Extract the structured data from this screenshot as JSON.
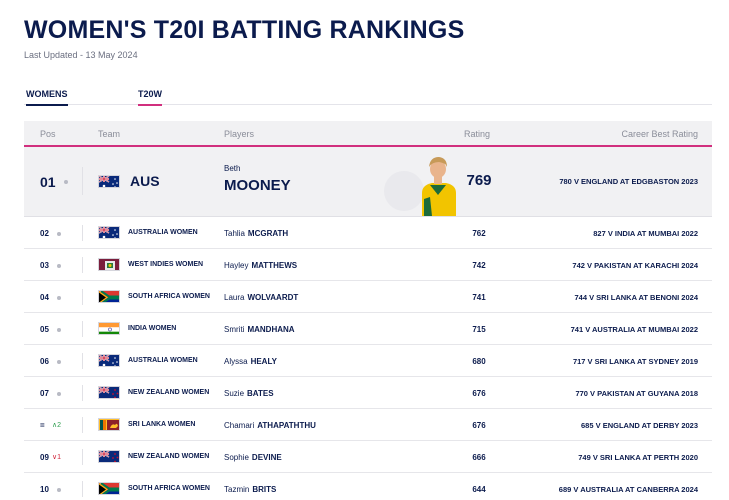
{
  "page": {
    "title": "WOMEN'S T20I BATTING RANKINGS",
    "updated": "Last Updated - 13 May 2024"
  },
  "tabs": [
    {
      "label": "WOMENS",
      "active": true
    },
    {
      "label": "T20W",
      "active": true
    }
  ],
  "headers": {
    "pos": "Pos",
    "team": "Team",
    "players": "Players",
    "rating": "Rating",
    "career_best": "Career Best Rating"
  },
  "top": {
    "pos": "01",
    "team": "AUS",
    "flag": "australia",
    "first": "Beth",
    "last": "MOONEY",
    "rating": "769",
    "best": "780 V ENGLAND AT EDGBASTON 2023"
  },
  "rows": [
    {
      "pos": "02",
      "move": "",
      "team": "AUSTRALIA WOMEN",
      "flag": "australia",
      "first": "Tahlia",
      "last": "MCGRATH",
      "rating": "762",
      "best": "827 V INDIA AT MUMBAI 2022"
    },
    {
      "pos": "03",
      "move": "",
      "team": "WEST INDIES WOMEN",
      "flag": "west-indies",
      "first": "Hayley",
      "last": "MATTHEWS",
      "rating": "742",
      "best": "742 V PAKISTAN AT KARACHI 2024"
    },
    {
      "pos": "04",
      "move": "",
      "team": "SOUTH AFRICA WOMEN",
      "flag": "south-africa",
      "first": "Laura",
      "last": "WOLVAARDT",
      "rating": "741",
      "best": "744 V SRI LANKA AT BENONI 2024"
    },
    {
      "pos": "05",
      "move": "",
      "team": "INDIA WOMEN",
      "flag": "india",
      "first": "Smriti",
      "last": "MANDHANA",
      "rating": "715",
      "best": "741 V AUSTRALIA AT MUMBAI 2022"
    },
    {
      "pos": "06",
      "move": "",
      "team": "AUSTRALIA WOMEN",
      "flag": "australia",
      "first": "Alyssa",
      "last": "HEALY",
      "rating": "680",
      "best": "717 V SRI LANKA AT SYDNEY 2019"
    },
    {
      "pos": "07",
      "move": "",
      "team": "NEW ZEALAND WOMEN",
      "flag": "new-zealand",
      "first": "Suzie",
      "last": "BATES",
      "rating": "676",
      "best": "770 V PAKISTAN AT GUYANA 2018"
    },
    {
      "pos": "=",
      "move": "^2",
      "move_dir": "up",
      "team": "SRI LANKA WOMEN",
      "flag": "sri-lanka",
      "first": "Chamari",
      "last": "ATHAPATHTHU",
      "rating": "676",
      "best": "685 V ENGLAND AT DERBY 2023"
    },
    {
      "pos": "09",
      "move": "v1",
      "move_dir": "down",
      "team": "NEW ZEALAND WOMEN",
      "flag": "new-zealand",
      "first": "Sophie",
      "last": "DEVINE",
      "rating": "666",
      "best": "749 V SRI LANKA AT PERTH 2020"
    },
    {
      "pos": "10",
      "move": "",
      "team": "SOUTH AFRICA WOMEN",
      "flag": "south-africa",
      "first": "Tazmin",
      "last": "BRITS",
      "rating": "644",
      "best": "689 V AUSTRALIA AT CANBERRA 2024"
    }
  ],
  "colors": {
    "navy": "#0b1b4d",
    "accent": "#d12f7e"
  }
}
